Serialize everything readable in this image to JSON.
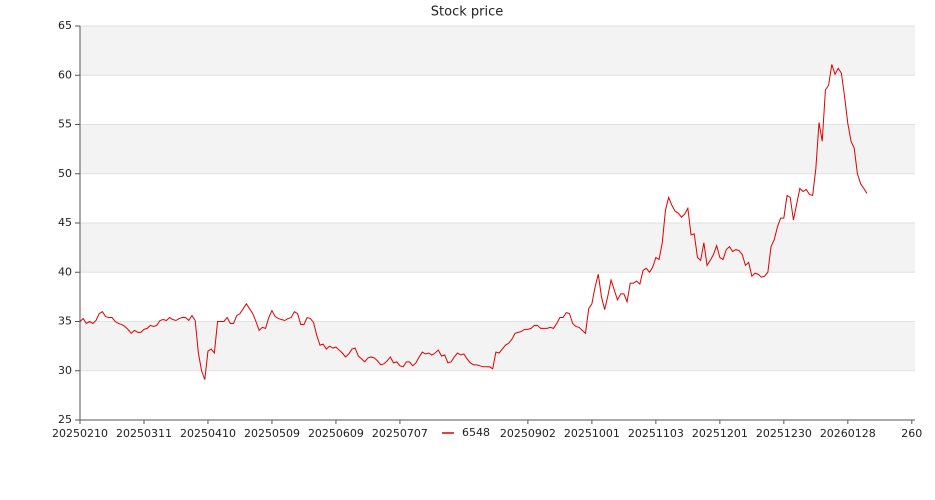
{
  "chart_data": {
    "type": "line",
    "title": "Stock price",
    "series": [
      {
        "name": "6548",
        "color": "#e00000",
        "values": [
          35.0,
          35.3,
          34.8,
          35.0,
          34.8,
          35.1,
          35.8,
          36.0,
          35.5,
          35.4,
          35.4,
          35.0,
          34.8,
          34.7,
          34.5,
          34.2,
          33.8,
          34.1,
          33.9,
          33.9,
          34.2,
          34.3,
          34.6,
          34.5,
          34.6,
          35.1,
          35.2,
          35.1,
          35.4,
          35.2,
          35.1,
          35.3,
          35.4,
          35.4,
          35.1,
          35.6,
          35.1,
          31.8,
          30.0,
          29.1,
          32.0,
          32.2,
          31.8,
          35.0,
          35.0,
          35.0,
          35.4,
          34.8,
          34.8,
          35.6,
          35.8,
          36.3,
          36.8,
          36.3,
          35.8,
          35.0,
          34.1,
          34.4,
          34.3,
          35.4,
          36.1,
          35.5,
          35.3,
          35.2,
          35.1,
          35.3,
          35.4,
          36.0,
          35.8,
          34.7,
          34.7,
          35.4,
          35.3,
          34.9,
          33.6,
          32.6,
          32.7,
          32.2,
          32.5,
          32.3,
          32.4,
          32.1,
          31.8,
          31.4,
          31.7,
          32.2,
          32.3,
          31.5,
          31.2,
          30.9,
          31.3,
          31.4,
          31.3,
          31.0,
          30.6,
          30.7,
          31.0,
          31.4,
          30.8,
          30.9,
          30.5,
          30.4,
          30.9,
          30.9,
          30.5,
          30.8,
          31.4,
          31.9,
          31.7,
          31.8,
          31.6,
          31.8,
          32.1,
          31.5,
          31.6,
          30.8,
          30.9,
          31.4,
          31.8,
          31.6,
          31.7,
          31.2,
          30.8,
          30.6,
          30.6,
          30.5,
          30.4,
          30.4,
          30.4,
          30.2,
          31.9,
          31.8,
          32.2,
          32.6,
          32.8,
          33.2,
          33.8,
          33.9,
          34.0,
          34.2,
          34.2,
          34.3,
          34.6,
          34.6,
          34.3,
          34.3,
          34.3,
          34.4,
          34.3,
          34.8,
          35.4,
          35.4,
          35.9,
          35.8,
          34.8,
          34.5,
          34.4,
          34.1,
          33.8,
          36.3,
          36.8,
          38.5,
          39.8,
          37.5,
          36.2,
          37.6,
          39.2,
          38.2,
          37.2,
          37.8,
          37.8,
          37.0,
          38.9,
          38.9,
          39.1,
          38.8,
          40.2,
          40.4,
          40.0,
          40.5,
          41.5,
          41.3,
          43.0,
          46.3,
          47.6,
          46.8,
          46.2,
          46.0,
          45.6,
          45.9,
          46.5,
          43.8,
          43.9,
          41.5,
          41.2,
          43.0,
          40.7,
          41.2,
          41.8,
          42.7,
          41.5,
          41.3,
          42.3,
          42.6,
          42.1,
          42.3,
          42.2,
          41.8,
          40.7,
          41.0,
          39.6,
          39.9,
          39.8,
          39.5,
          39.6,
          40.0,
          42.6,
          43.3,
          44.6,
          45.5,
          45.5,
          47.8,
          47.6,
          45.3,
          46.9,
          48.5,
          48.2,
          48.4,
          47.9,
          47.8,
          50.5,
          55.2,
          53.3,
          58.5,
          59.0,
          61.1,
          60.1,
          60.7,
          60.2,
          57.8,
          55.1,
          53.3,
          52.6,
          50.0,
          49.0,
          48.5,
          48.0
        ]
      }
    ],
    "xlim": [
      0,
      261
    ],
    "xticks": [
      {
        "value": 0,
        "label": "20250210"
      },
      {
        "value": 20,
        "label": "20250311"
      },
      {
        "value": 40,
        "label": "20250410"
      },
      {
        "value": 60,
        "label": "20250509"
      },
      {
        "value": 80,
        "label": "20250609"
      },
      {
        "value": 100,
        "label": "20250707"
      },
      {
        "value": 140,
        "label": "20250902"
      },
      {
        "value": 160,
        "label": "20251001"
      },
      {
        "value": 180,
        "label": "20251103"
      },
      {
        "value": 200,
        "label": "20251201"
      },
      {
        "value": 220,
        "label": "20251230"
      },
      {
        "value": 240,
        "label": "20260128"
      },
      {
        "value": 260,
        "label": "260"
      }
    ],
    "ylim": [
      25,
      65
    ],
    "yticks": [
      25,
      30,
      35,
      40,
      45,
      50,
      55,
      60,
      65
    ],
    "grid": true,
    "legend": "bottom"
  }
}
